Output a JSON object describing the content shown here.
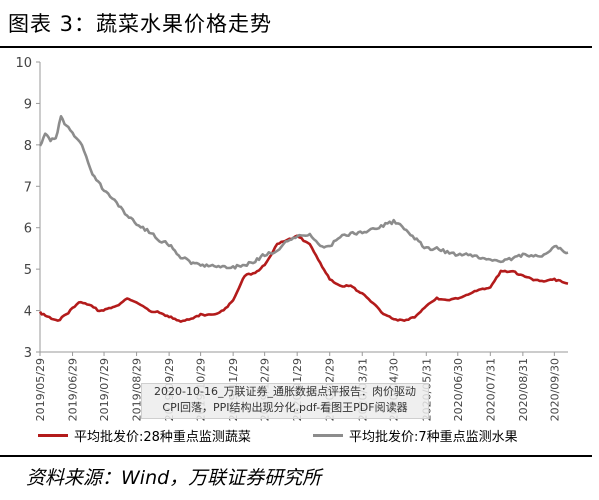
{
  "header": {
    "title": "图表 3：蔬菜水果价格走势"
  },
  "source": {
    "text": "资料来源：Wind，万联证券研究所"
  },
  "watermark": {
    "line1": "2020-10-16_万联证券_通胀数据点评报告：肉价驱动",
    "line2": "CPI回落，PPI结构出现分化.pdf-看图王PDF阅读器"
  },
  "colors": {
    "vegetable": "#b31b1b",
    "fruit": "#8c8c8c",
    "axis": "#9a9a9a"
  },
  "chart_data": {
    "type": "line",
    "ylim": [
      3,
      10
    ],
    "yticks": [
      3,
      4,
      5,
      6,
      7,
      8,
      9,
      10
    ],
    "x_range": [
      "2019-05-29",
      "2020-10-13"
    ],
    "x_tick_labels": [
      "2019/05/29",
      "2019/06/29",
      "2019/07/29",
      "2019/08/29",
      "2019/09/29",
      "2019/10/29",
      "2019/11/29",
      "2019/12/29",
      "2020/01/29",
      "2020/02/29",
      "2020/03/31",
      "2020/04/30",
      "2020/05/31",
      "2020/06/30",
      "2020/07/31",
      "2020/08/31",
      "2020/09/30"
    ],
    "series": [
      {
        "name": "平均批发价:28种重点监测蔬菜",
        "x": [
          "2019-05-29",
          "2019-06-05",
          "2019-06-15",
          "2019-06-25",
          "2019-07-05",
          "2019-07-15",
          "2019-07-25",
          "2019-08-01",
          "2019-08-10",
          "2019-08-20",
          "2019-08-29",
          "2019-09-10",
          "2019-09-20",
          "2019-09-29",
          "2019-10-10",
          "2019-10-20",
          "2019-10-29",
          "2019-11-10",
          "2019-11-20",
          "2019-11-29",
          "2019-12-10",
          "2019-12-20",
          "2019-12-29",
          "2020-01-10",
          "2020-01-20",
          "2020-01-29",
          "2020-02-10",
          "2020-02-20",
          "2020-02-29",
          "2020-03-10",
          "2020-03-20",
          "2020-03-31",
          "2020-04-10",
          "2020-04-20",
          "2020-04-30",
          "2020-05-10",
          "2020-05-20",
          "2020-05-31",
          "2020-06-10",
          "2020-06-20",
          "2020-06-30",
          "2020-07-10",
          "2020-07-20",
          "2020-07-31",
          "2020-08-10",
          "2020-08-20",
          "2020-08-31",
          "2020-09-10",
          "2020-09-20",
          "2020-09-30",
          "2020-10-13"
        ],
        "values": [
          3.95,
          3.85,
          3.75,
          3.95,
          4.2,
          4.15,
          3.98,
          4.05,
          4.1,
          4.3,
          4.2,
          4.0,
          3.95,
          3.85,
          3.75,
          3.8,
          3.9,
          3.9,
          4.0,
          4.25,
          4.85,
          4.9,
          5.1,
          5.6,
          5.7,
          5.8,
          5.6,
          5.15,
          4.75,
          4.6,
          4.6,
          4.4,
          4.2,
          3.9,
          3.8,
          3.75,
          3.85,
          4.1,
          4.3,
          4.25,
          4.3,
          4.4,
          4.5,
          4.55,
          4.95,
          4.95,
          4.85,
          4.75,
          4.7,
          4.75,
          4.65
        ]
      },
      {
        "name": "平均批发价:7种重点监测水果",
        "x": [
          "2019-05-29",
          "2019-06-03",
          "2019-06-08",
          "2019-06-13",
          "2019-06-18",
          "2019-06-23",
          "2019-06-29",
          "2019-07-08",
          "2019-07-18",
          "2019-07-29",
          "2019-08-10",
          "2019-08-20",
          "2019-08-29",
          "2019-09-10",
          "2019-09-20",
          "2019-09-29",
          "2019-10-10",
          "2019-10-20",
          "2019-10-29",
          "2019-11-15",
          "2019-11-29",
          "2019-12-10",
          "2019-12-20",
          "2019-12-29",
          "2020-01-10",
          "2020-01-20",
          "2020-01-29",
          "2020-02-10",
          "2020-02-20",
          "2020-02-29",
          "2020-03-10",
          "2020-03-20",
          "2020-03-31",
          "2020-04-10",
          "2020-04-20",
          "2020-04-30",
          "2020-05-10",
          "2020-05-20",
          "2020-05-31",
          "2020-06-10",
          "2020-06-20",
          "2020-06-30",
          "2020-07-10",
          "2020-07-20",
          "2020-07-31",
          "2020-08-10",
          "2020-08-20",
          "2020-08-31",
          "2020-09-10",
          "2020-09-20",
          "2020-09-30",
          "2020-10-13"
        ],
        "values": [
          7.95,
          8.3,
          8.1,
          8.15,
          8.7,
          8.45,
          8.3,
          8.0,
          7.3,
          6.9,
          6.6,
          6.3,
          6.1,
          5.9,
          5.7,
          5.6,
          5.3,
          5.15,
          5.1,
          5.05,
          5.05,
          5.1,
          5.2,
          5.35,
          5.45,
          5.7,
          5.8,
          5.85,
          5.55,
          5.55,
          5.8,
          5.85,
          5.9,
          5.95,
          6.05,
          6.15,
          6.0,
          5.75,
          5.5,
          5.5,
          5.4,
          5.35,
          5.35,
          5.3,
          5.25,
          5.2,
          5.25,
          5.35,
          5.3,
          5.35,
          5.55,
          5.4
        ]
      }
    ]
  }
}
